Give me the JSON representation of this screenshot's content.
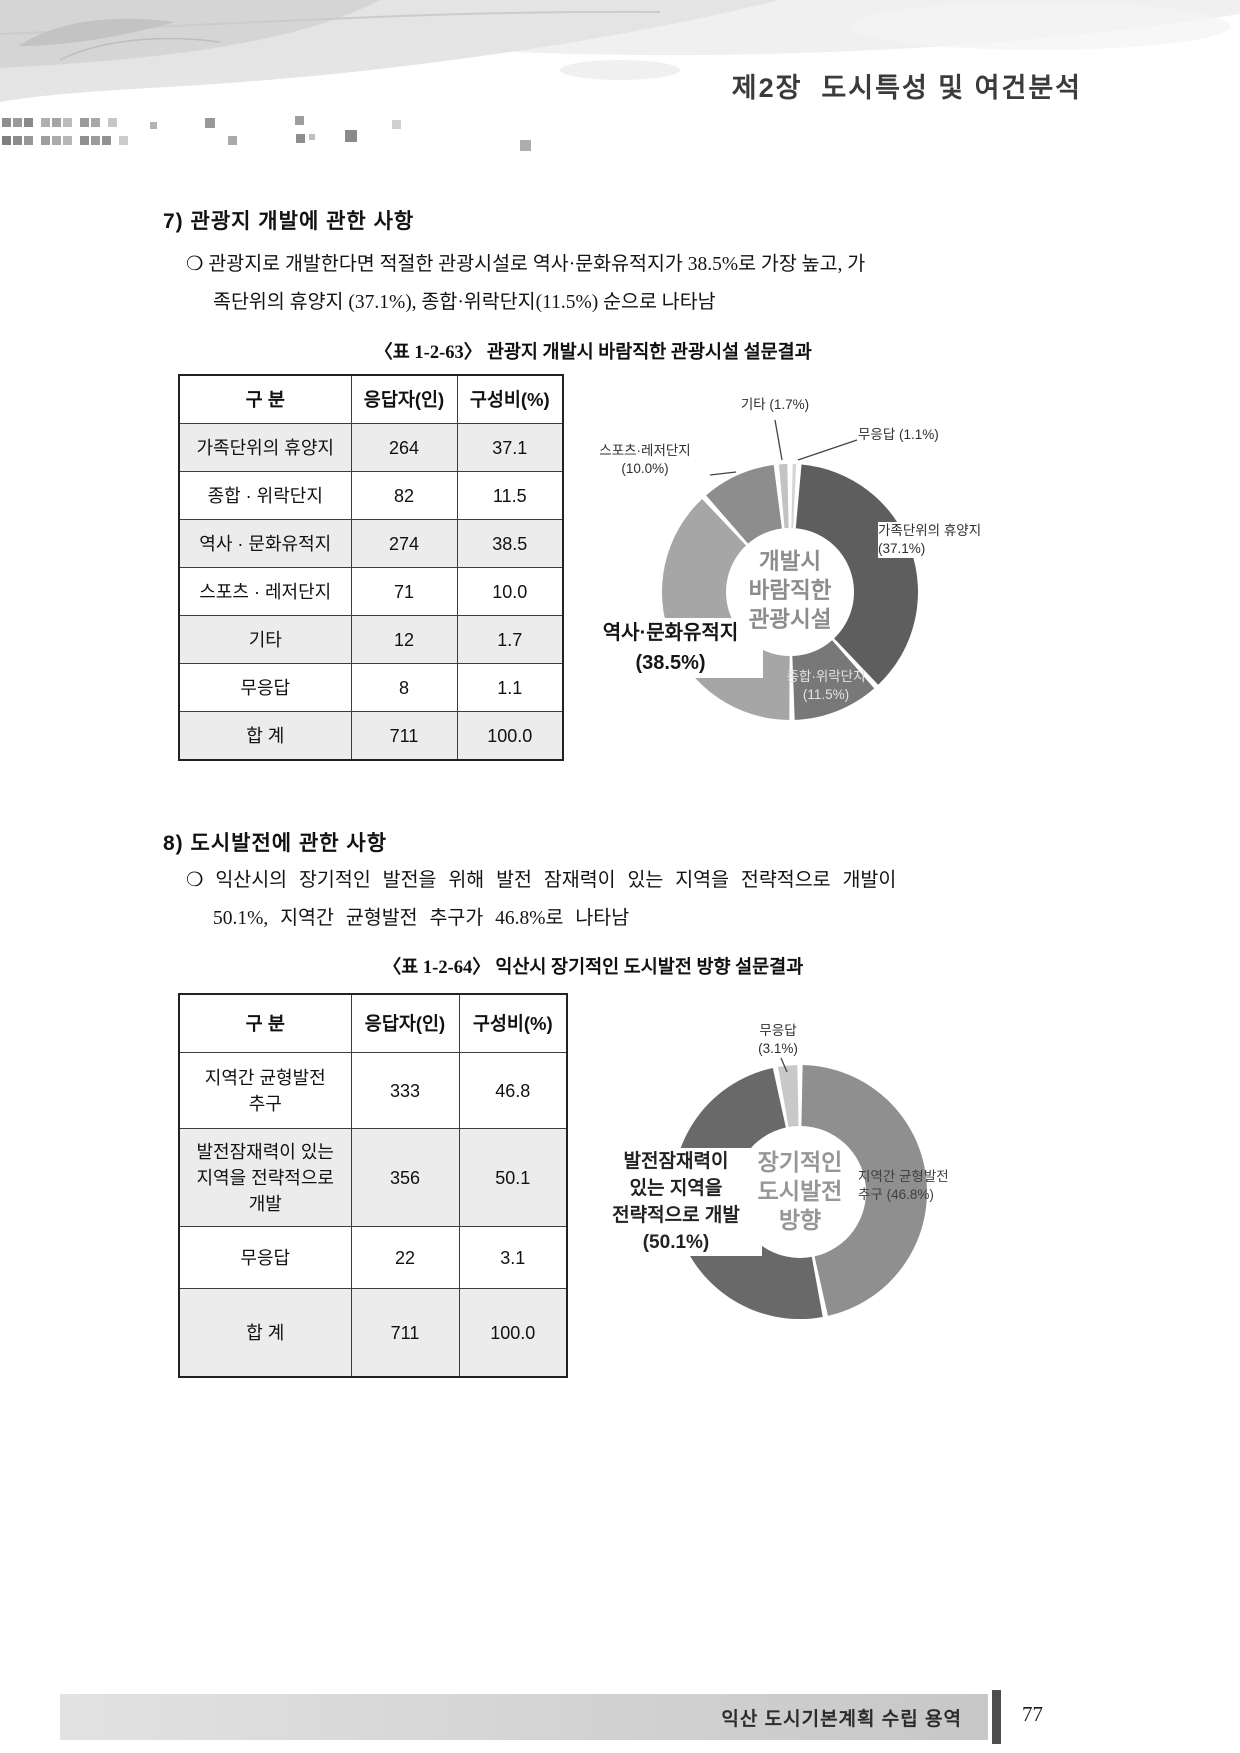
{
  "header": {
    "chapter_title": "제2장  도시특성 및 여건분석"
  },
  "sections": [
    {
      "heading": "7) 관광지 개발에 관한 사항",
      "bullet": "❍ ",
      "paragraph": "관광지로 개발한다면 적절한 관광시설로 역사·문화유적지가 38.5%로 가장 높고, 가\n족단위의 휴양지 (37.1%),  종합·위락단지(11.5%) 순으로 나타남",
      "table_caption": "〈표 1-2-63〉 관광지 개발시 바람직한 관광시설 설문결과",
      "table": {
        "headers": [
          "구 분",
          "응답자(인)",
          "구성비(%)"
        ],
        "rows": [
          [
            "가족단위의 휴양지",
            "264",
            "37.1"
          ],
          [
            "종합 · 위락단지",
            "82",
            "11.5"
          ],
          [
            "역사 · 문화유적지",
            "274",
            "38.5"
          ],
          [
            "스포츠 · 레저단지",
            "71",
            "10.0"
          ],
          [
            "기타",
            "12",
            "1.7"
          ],
          [
            "무응답",
            "8",
            "1.1"
          ],
          [
            "합 계",
            "711",
            "100.0"
          ]
        ]
      }
    },
    {
      "heading": "8) 도시발전에 관한 사항",
      "bullet": "❍ ",
      "paragraph": "익산시의 장기적인 발전을 위해 발전 잠재력이 있는 지역을 전략적으로 개발이\n50.1%, 지역간 균형발전 추구가 46.8%로 나타남",
      "table_caption": "〈표 1-2-64〉 익산시 장기적인 도시발전 방향 설문결과",
      "table": {
        "headers": [
          "구 분",
          "응답자(인)",
          "구성비(%)"
        ],
        "rows": [
          [
            "지역간 균형발전\n추구",
            "333",
            "46.8"
          ],
          [
            "발전잠재력이 있는\n지역을 전략적으로\n개발",
            "356",
            "50.1"
          ],
          [
            "무응답",
            "22",
            "3.1"
          ],
          [
            "합 계",
            "711",
            "100.0"
          ]
        ]
      }
    }
  ],
  "chart_data": [
    {
      "type": "pie",
      "donut": true,
      "title": "개발시 바람직한 관광시설",
      "center_label": "개발시\n바람직한\n관광시설",
      "slices": [
        {
          "label": "무응답",
          "value": 1.1,
          "color": "#d4d4d4"
        },
        {
          "label": "가족단위의 휴양지",
          "value": 37.1,
          "color": "#5e5e5e"
        },
        {
          "label": "종합·위락단지",
          "value": 11.5,
          "color": "#787878"
        },
        {
          "label": "역사·문화유적지",
          "value": 38.5,
          "color": "#a6a6a6"
        },
        {
          "label": "스포츠·레저단지",
          "value": 10.0,
          "color": "#8d8d8d"
        },
        {
          "label": "기타",
          "value": 1.7,
          "color": "#c3c3c3"
        }
      ],
      "callouts": {
        "etc": "기타 (1.7%)",
        "no_response": "무응답 (1.1%)",
        "sports": "스포츠·레저단지\n(10.0%)",
        "family": "가족단위의 휴양지\n(37.1%)",
        "history": "역사·문화유적지\n(38.5%)",
        "complex": "종합·위락단지\n(11.5%)"
      }
    },
    {
      "type": "pie",
      "donut": true,
      "title": "장기적인 도시발전 방향",
      "center_label": "장기적인\n도시발전\n방향",
      "slices": [
        {
          "label": "지역간 균형발전 추구",
          "value": 46.8,
          "color": "#8f8f8f"
        },
        {
          "label": "발전잠재력이 있는 지역을 전략적으로 개발",
          "value": 50.1,
          "color": "#696969"
        },
        {
          "label": "무응답",
          "value": 3.1,
          "color": "#c8c8c8"
        }
      ],
      "callouts": {
        "no_response": "무응답\n(3.1%)",
        "balanced": "지역간 균형발전\n추구 (46.8%)",
        "strategic": "발전잠재력이\n있는 지역을\n전략적으로 개발\n(50.1%)"
      }
    }
  ],
  "footer": {
    "label": "익산 도시기본계획 수립 용역",
    "page_number": "77"
  }
}
